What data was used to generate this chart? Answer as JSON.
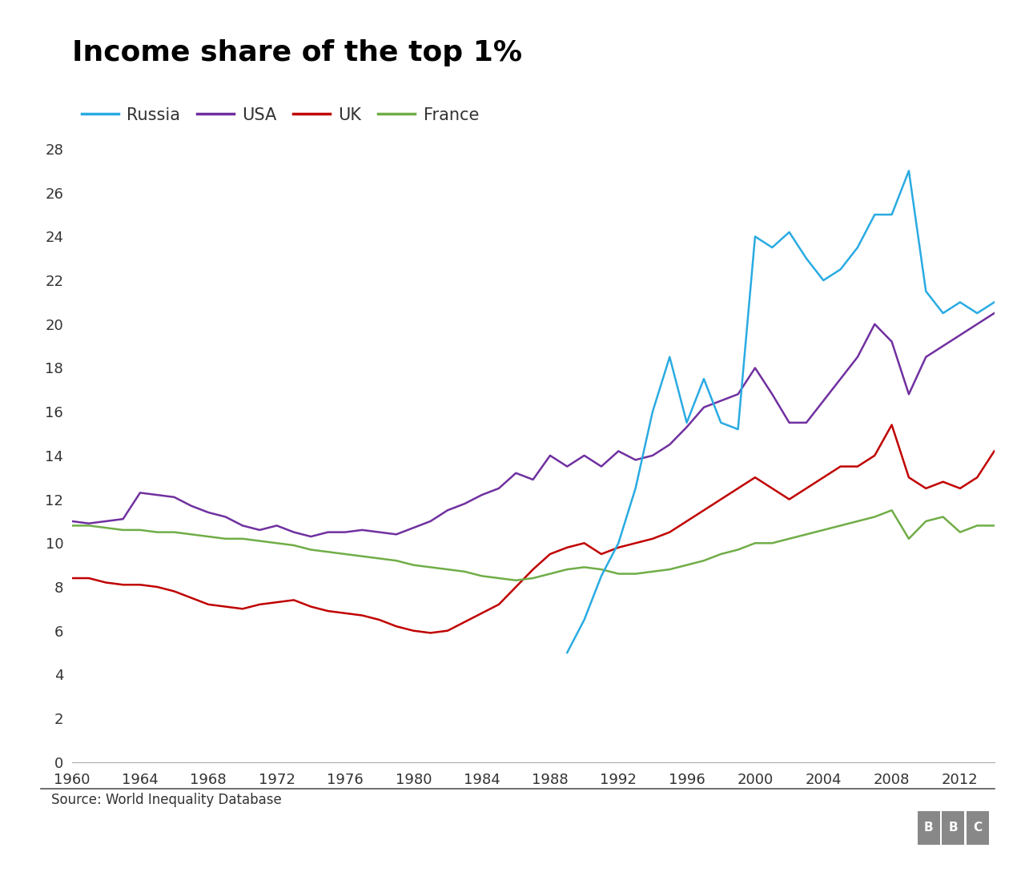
{
  "title": "Income share of the top 1%",
  "source": "Source: World Inequality Database",
  "background_color": "#ffffff",
  "title_fontsize": 26,
  "legend_fontsize": 15,
  "axis_fontsize": 13,
  "colors": {
    "Russia": "#29ABE2",
    "USA": "#7030A0",
    "UK": "#C00000",
    "France": "#70AD47"
  },
  "USA": {
    "years": [
      1960,
      1961,
      1962,
      1963,
      1964,
      1965,
      1966,
      1967,
      1968,
      1969,
      1970,
      1971,
      1972,
      1973,
      1974,
      1975,
      1976,
      1977,
      1978,
      1979,
      1980,
      1981,
      1982,
      1983,
      1984,
      1985,
      1986,
      1987,
      1988,
      1989,
      1990,
      1991,
      1992,
      1993,
      1994,
      1995,
      1996,
      1997,
      1998,
      1999,
      2000,
      2001,
      2002,
      2003,
      2004,
      2005,
      2006,
      2007,
      2008,
      2009,
      2010,
      2011,
      2012,
      2013,
      2014
    ],
    "values": [
      11.0,
      10.9,
      11.0,
      11.1,
      12.3,
      12.2,
      12.1,
      11.7,
      11.4,
      11.2,
      10.8,
      10.6,
      10.8,
      10.5,
      10.3,
      10.5,
      10.5,
      10.6,
      10.5,
      10.4,
      10.7,
      11.0,
      11.5,
      11.8,
      12.2,
      12.5,
      13.2,
      12.9,
      14.0,
      13.5,
      14.0,
      13.5,
      14.2,
      13.8,
      14.0,
      14.5,
      15.3,
      16.2,
      16.5,
      16.8,
      18.0,
      16.8,
      15.5,
      15.5,
      16.5,
      17.5,
      18.5,
      20.0,
      19.2,
      16.8,
      18.5,
      19.0,
      19.5,
      20.0,
      20.5
    ]
  },
  "UK": {
    "years": [
      1960,
      1961,
      1962,
      1963,
      1964,
      1965,
      1966,
      1967,
      1968,
      1969,
      1970,
      1971,
      1972,
      1973,
      1974,
      1975,
      1976,
      1977,
      1978,
      1979,
      1980,
      1981,
      1982,
      1983,
      1984,
      1985,
      1986,
      1987,
      1988,
      1989,
      1990,
      1991,
      1992,
      1993,
      1994,
      1995,
      1996,
      1997,
      1998,
      1999,
      2000,
      2001,
      2002,
      2003,
      2004,
      2005,
      2006,
      2007,
      2008,
      2009,
      2010,
      2011,
      2012,
      2013,
      2014
    ],
    "values": [
      8.4,
      8.4,
      8.2,
      8.1,
      8.1,
      8.0,
      7.8,
      7.5,
      7.2,
      7.1,
      7.0,
      7.2,
      7.3,
      7.4,
      7.1,
      6.9,
      6.8,
      6.7,
      6.5,
      6.2,
      6.0,
      5.9,
      6.0,
      6.4,
      6.8,
      7.2,
      8.0,
      8.8,
      9.5,
      9.8,
      10.0,
      9.5,
      9.8,
      10.0,
      10.2,
      10.5,
      11.0,
      11.5,
      12.0,
      12.5,
      13.0,
      12.5,
      12.0,
      12.5,
      13.0,
      13.5,
      13.5,
      14.0,
      15.4,
      13.0,
      12.5,
      12.8,
      12.5,
      13.0,
      14.2
    ]
  },
  "France": {
    "years": [
      1960,
      1961,
      1962,
      1963,
      1964,
      1965,
      1966,
      1967,
      1968,
      1969,
      1970,
      1971,
      1972,
      1973,
      1974,
      1975,
      1976,
      1977,
      1978,
      1979,
      1980,
      1981,
      1982,
      1983,
      1984,
      1985,
      1986,
      1987,
      1988,
      1989,
      1990,
      1991,
      1992,
      1993,
      1994,
      1995,
      1996,
      1997,
      1998,
      1999,
      2000,
      2001,
      2002,
      2003,
      2004,
      2005,
      2006,
      2007,
      2008,
      2009,
      2010,
      2011,
      2012,
      2013,
      2014
    ],
    "values": [
      10.8,
      10.8,
      10.7,
      10.6,
      10.6,
      10.5,
      10.5,
      10.4,
      10.3,
      10.2,
      10.2,
      10.1,
      10.0,
      9.9,
      9.7,
      9.6,
      9.5,
      9.4,
      9.3,
      9.2,
      9.0,
      8.9,
      8.8,
      8.7,
      8.5,
      8.4,
      8.3,
      8.4,
      8.6,
      8.8,
      8.9,
      8.8,
      8.6,
      8.6,
      8.7,
      8.8,
      9.0,
      9.2,
      9.5,
      9.7,
      10.0,
      10.0,
      10.2,
      10.4,
      10.6,
      10.8,
      11.0,
      11.2,
      11.5,
      10.2,
      11.0,
      11.2,
      10.5,
      10.8,
      10.8
    ]
  },
  "Russia": {
    "years": [
      1989,
      1990,
      1991,
      1992,
      1993,
      1994,
      1995,
      1996,
      1997,
      1998,
      1999,
      2000,
      2001,
      2002,
      2003,
      2004,
      2005,
      2006,
      2007,
      2008,
      2009,
      2010,
      2011,
      2012,
      2013,
      2014
    ],
    "values": [
      5.0,
      6.5,
      8.5,
      10.0,
      12.5,
      16.0,
      18.5,
      15.5,
      17.5,
      15.5,
      15.2,
      24.0,
      23.5,
      24.2,
      23.0,
      22.0,
      22.5,
      23.5,
      25.0,
      25.0,
      27.0,
      21.5,
      20.5,
      21.0,
      20.5,
      21.0
    ]
  },
  "xlim": [
    1960,
    2014
  ],
  "ylim": [
    0,
    29
  ],
  "yticks": [
    0,
    2,
    4,
    6,
    8,
    10,
    12,
    14,
    16,
    18,
    20,
    22,
    24,
    26,
    28
  ],
  "xticks": [
    1960,
    1964,
    1968,
    1972,
    1976,
    1980,
    1984,
    1988,
    1992,
    1996,
    2000,
    2004,
    2008,
    2012
  ]
}
